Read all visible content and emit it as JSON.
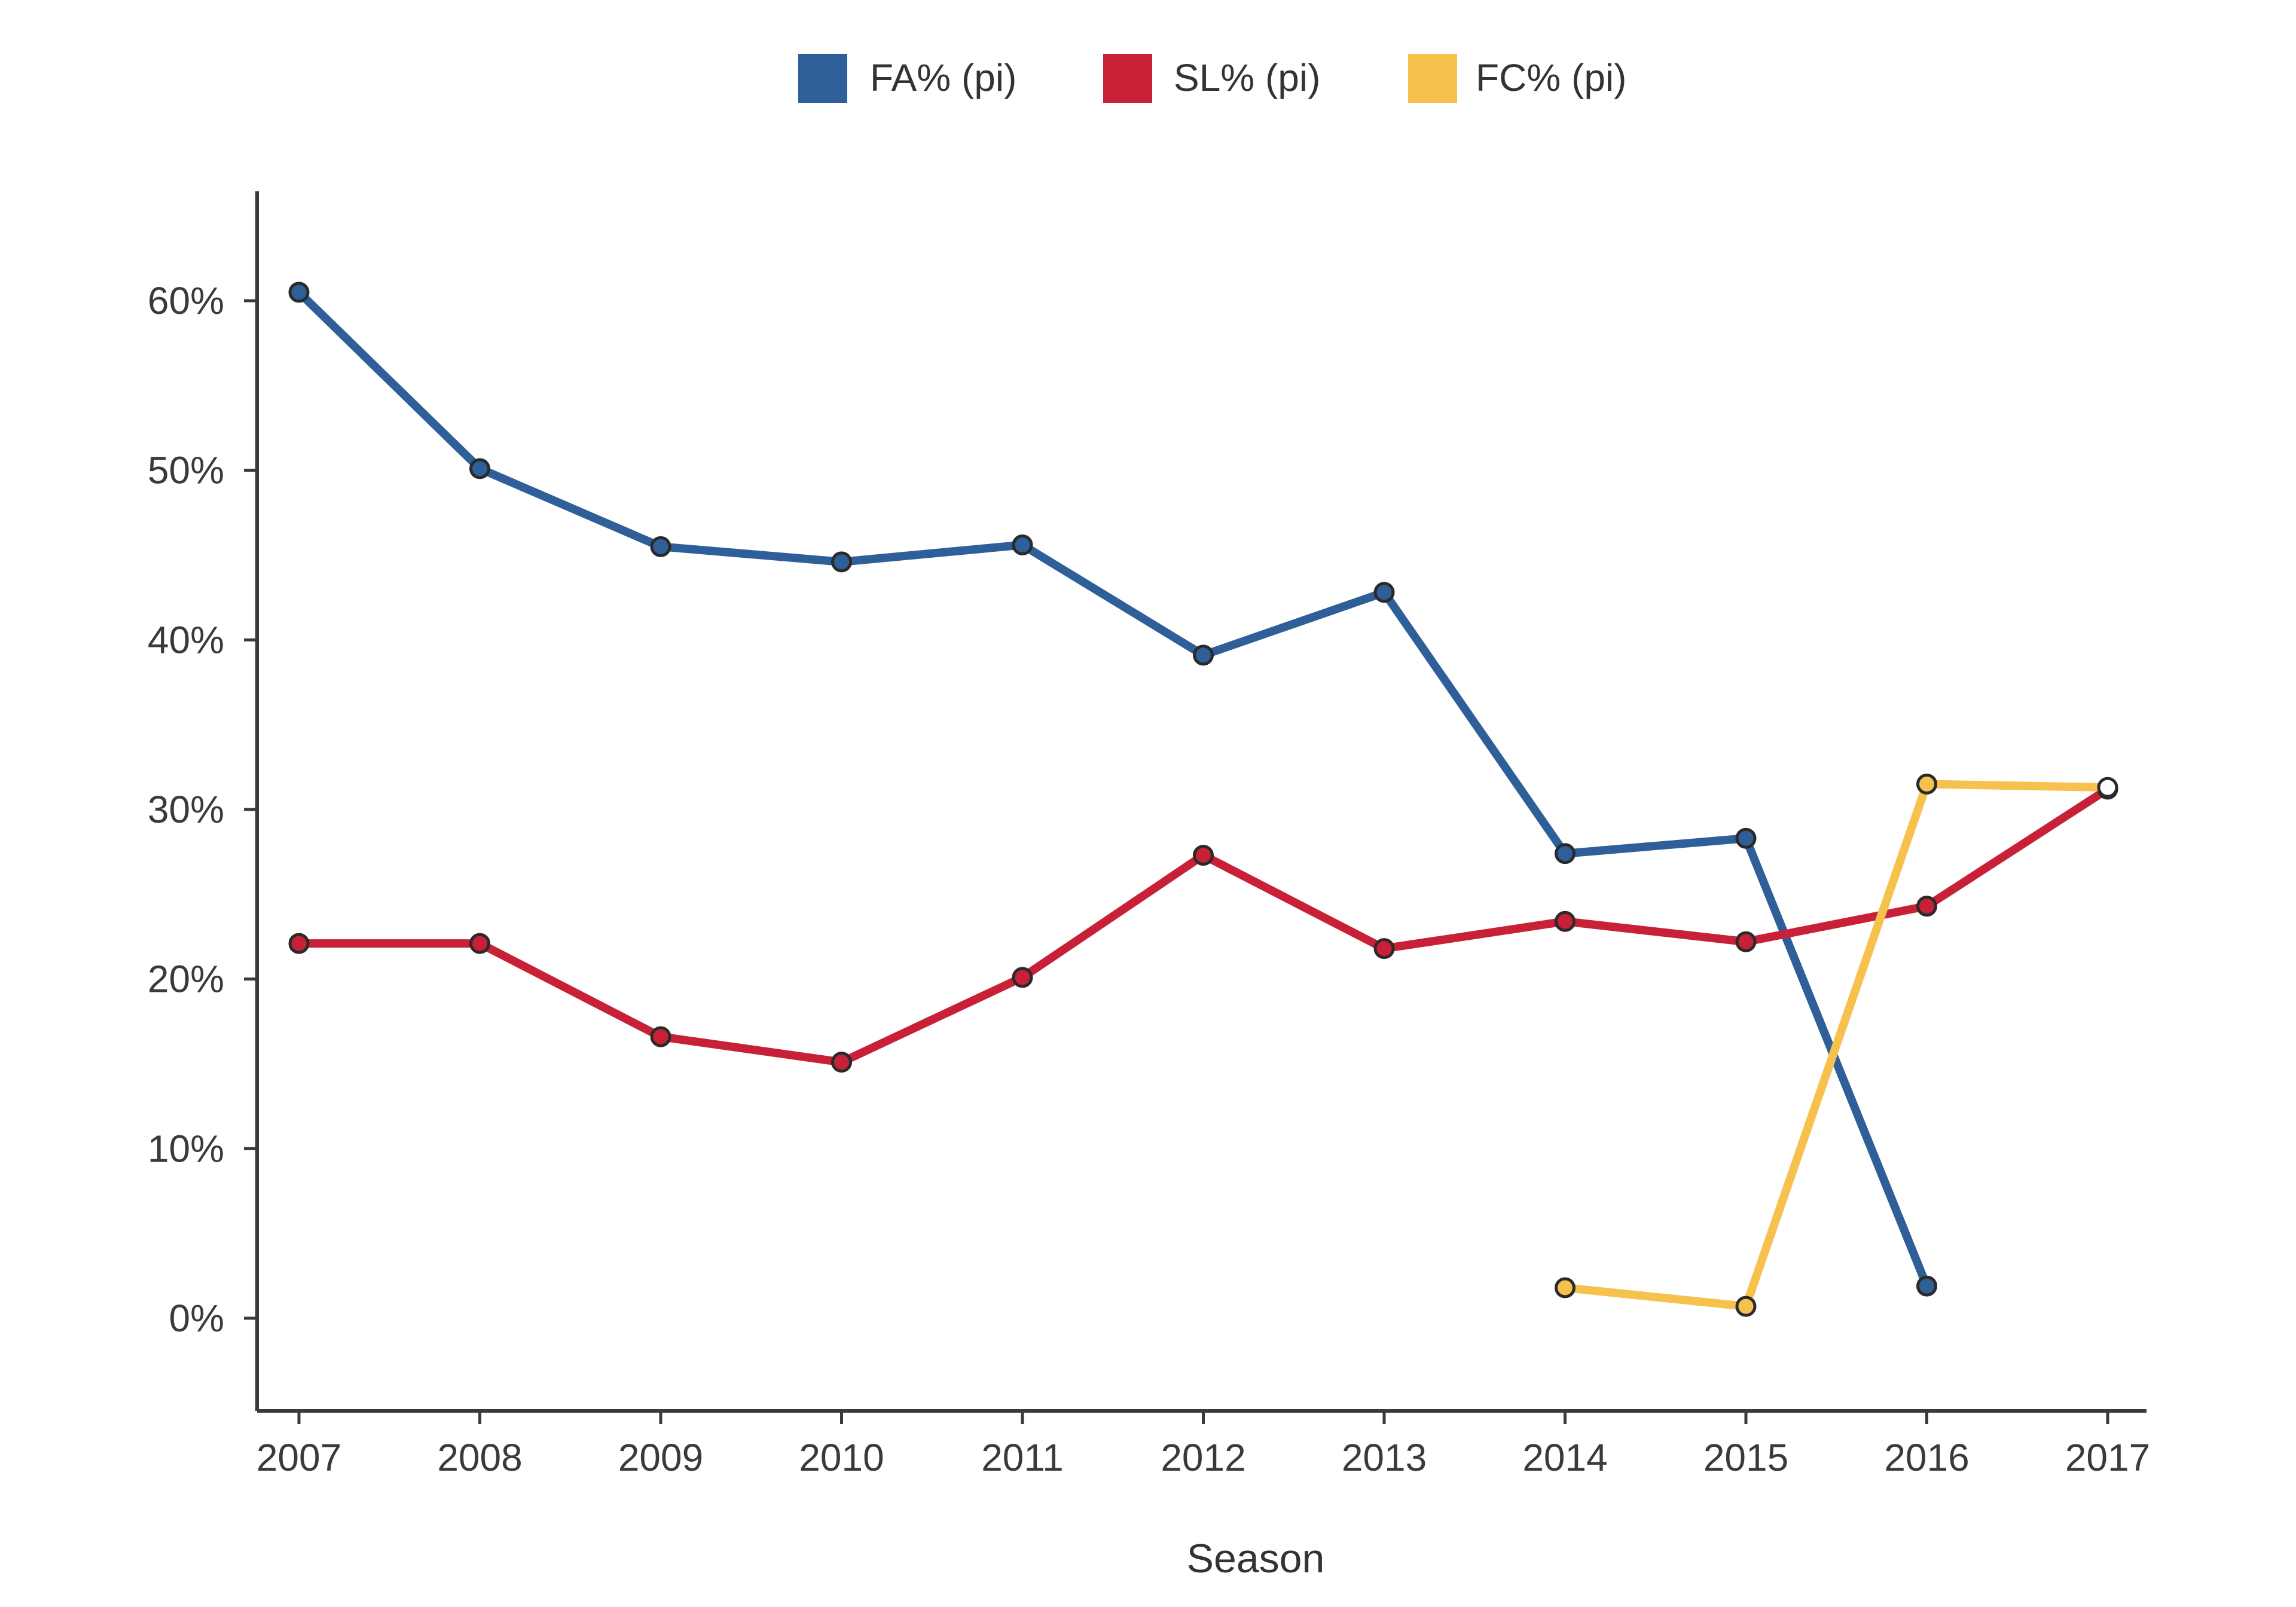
{
  "chart_data": {
    "type": "line",
    "title": "",
    "xlabel": "Season",
    "ylabel": "",
    "categories": [
      "2007",
      "2008",
      "2009",
      "2010",
      "2011",
      "2012",
      "2013",
      "2014",
      "2015",
      "2016",
      "2017"
    ],
    "ylim": [
      -5,
      67
    ],
    "yticks": [
      0,
      10,
      20,
      30,
      40,
      50,
      60
    ],
    "ytick_labels": [
      "0%",
      "10%",
      "20%",
      "30%",
      "40%",
      "50%",
      "60%"
    ],
    "grid": false,
    "legend_position": "top-center",
    "series": [
      {
        "name": "FA% (pi)",
        "color": "#2f5f98",
        "marker_fill": "#2f5f98",
        "values": [
          60.5,
          50.1,
          45.5,
          44.6,
          45.6,
          39.1,
          42.8,
          27.4,
          28.3,
          1.9,
          null
        ]
      },
      {
        "name": "SL% (pi)",
        "color": "#c82137",
        "marker_fill": "#c82137",
        "values": [
          22.1,
          22.1,
          16.6,
          15.1,
          20.1,
          27.3,
          21.8,
          23.4,
          22.2,
          24.3,
          31.2
        ]
      },
      {
        "name": "FC% (pi)",
        "color": "#f6c14d",
        "marker_fill": "#f6c14d",
        "values": [
          null,
          null,
          null,
          null,
          null,
          null,
          null,
          1.8,
          0.7,
          31.5,
          31.3
        ]
      }
    ]
  }
}
